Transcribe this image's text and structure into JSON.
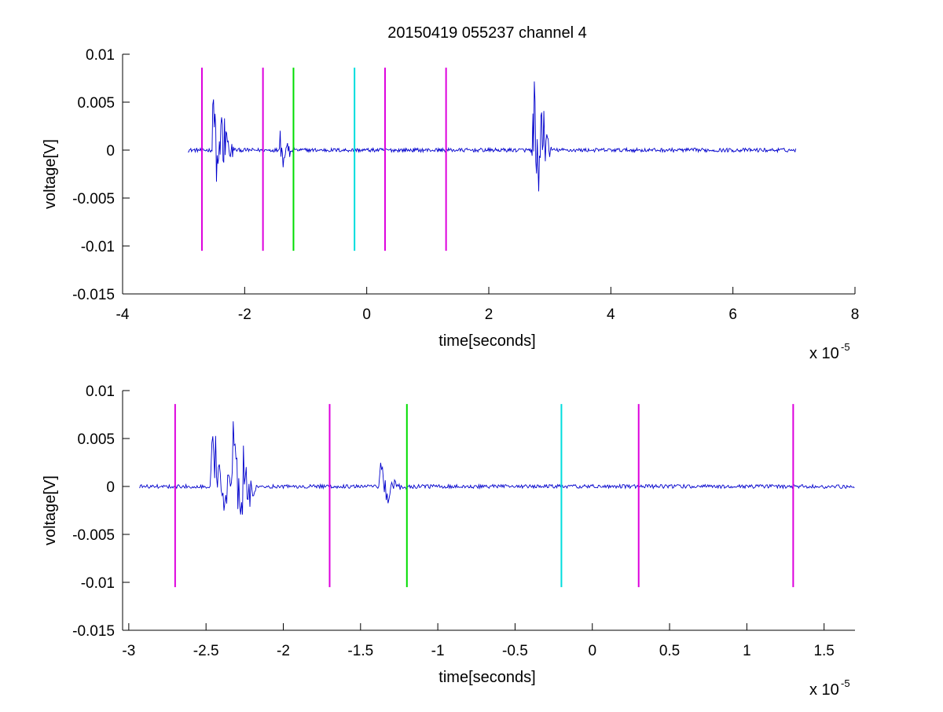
{
  "figure": {
    "title": "20150419 055237 channel 4"
  },
  "chart_data": [
    {
      "type": "line",
      "title": "20150419 055237 channel 4",
      "xlabel": "time[seconds]",
      "ylabel": "voltage[V]",
      "x_multiplier": "x 10",
      "x_multiplier_exponent": "-5",
      "xlim": [
        -4,
        8
      ],
      "ylim": [
        -0.015,
        0.01
      ],
      "xticks": [
        -4,
        -2,
        0,
        2,
        4,
        6,
        8
      ],
      "xtick_labels": [
        "-4",
        "-2",
        "0",
        "2",
        "4",
        "6",
        "8"
      ],
      "yticks": [
        0.01,
        0.005,
        0,
        -0.005,
        -0.01,
        -0.015
      ],
      "ytick_labels": [
        "0.01",
        "0.005",
        "0",
        "-0.005",
        "-0.01",
        "-0.015"
      ],
      "grid": false,
      "box": "open-left-bottom",
      "series": [
        {
          "color": "#0000cc",
          "x_range": [
            -2.93,
            7.03
          ],
          "baseline_noise": 0.0002,
          "bursts": [
            {
              "x": -2.5,
              "amp": 0.0075,
              "duration": 0.35
            },
            {
              "x": -2.3,
              "amp": 0.0045,
              "duration": 0.15
            },
            {
              "x": -1.4,
              "amp": 0.0025,
              "duration": 0.25
            },
            {
              "x": 2.73,
              "amp": 0.0095,
              "duration": 0.3
            },
            {
              "x": 2.93,
              "amp": 0.0045,
              "duration": 0.1
            }
          ]
        }
      ],
      "vlines": [
        {
          "x": -2.7,
          "color": "#dd00dd",
          "y_range": [
            -0.0105,
            0.0086
          ]
        },
        {
          "x": -1.7,
          "color": "#dd00dd",
          "y_range": [
            -0.0105,
            0.0086
          ]
        },
        {
          "x": -1.2,
          "color": "#00dd00",
          "y_range": [
            -0.0105,
            0.0086
          ]
        },
        {
          "x": -0.2,
          "color": "#00dddd",
          "y_range": [
            -0.0105,
            0.0086
          ]
        },
        {
          "x": 0.3,
          "color": "#dd00dd",
          "y_range": [
            -0.0105,
            0.0086
          ]
        },
        {
          "x": 1.3,
          "color": "#dd00dd",
          "y_range": [
            -0.0105,
            0.0086
          ]
        }
      ]
    },
    {
      "type": "line",
      "title": "",
      "xlabel": "time[seconds]",
      "ylabel": "voltage[V]",
      "x_multiplier": "x 10",
      "x_multiplier_exponent": "-5",
      "xlim": [
        -3.04,
        1.7
      ],
      "ylim": [
        -0.015,
        0.01
      ],
      "xticks": [
        -3,
        -2.5,
        -2,
        -1.5,
        -1,
        -0.5,
        0,
        0.5,
        1,
        1.5
      ],
      "xtick_labels": [
        "-3",
        "-2.5",
        "-2",
        "-1.5",
        "-1",
        "-0.5",
        "0",
        "0.5",
        "1",
        "1.5"
      ],
      "yticks": [
        0.01,
        0.005,
        0,
        -0.005,
        -0.01,
        -0.015
      ],
      "ytick_labels": [
        "0.01",
        "0.005",
        "0",
        "-0.005",
        "-0.01",
        "-0.015"
      ],
      "grid": false,
      "box": "open-left-bottom",
      "series": [
        {
          "color": "#0000cc",
          "x_range": [
            -2.93,
            1.7
          ],
          "baseline_noise": 0.0002,
          "bursts": [
            {
              "x": -2.44,
              "amp": 0.0075,
              "duration": 0.18
            },
            {
              "x": -2.3,
              "amp": 0.0055,
              "duration": 0.1
            },
            {
              "x": -2.23,
              "amp": 0.0045,
              "duration": 0.06
            },
            {
              "x": -1.35,
              "amp": 0.0025,
              "duration": 0.15
            }
          ]
        }
      ],
      "vlines": [
        {
          "x": -2.7,
          "color": "#dd00dd",
          "y_range": [
            -0.0105,
            0.0086
          ]
        },
        {
          "x": -1.7,
          "color": "#dd00dd",
          "y_range": [
            -0.0105,
            0.0086
          ]
        },
        {
          "x": -1.2,
          "color": "#00dd00",
          "y_range": [
            -0.0105,
            0.0086
          ]
        },
        {
          "x": -0.2,
          "color": "#00dddd",
          "y_range": [
            -0.0105,
            0.0086
          ]
        },
        {
          "x": 0.3,
          "color": "#dd00dd",
          "y_range": [
            -0.0105,
            0.0086
          ]
        },
        {
          "x": 1.3,
          "color": "#dd00dd",
          "y_range": [
            -0.0105,
            0.0086
          ]
        }
      ]
    }
  ]
}
